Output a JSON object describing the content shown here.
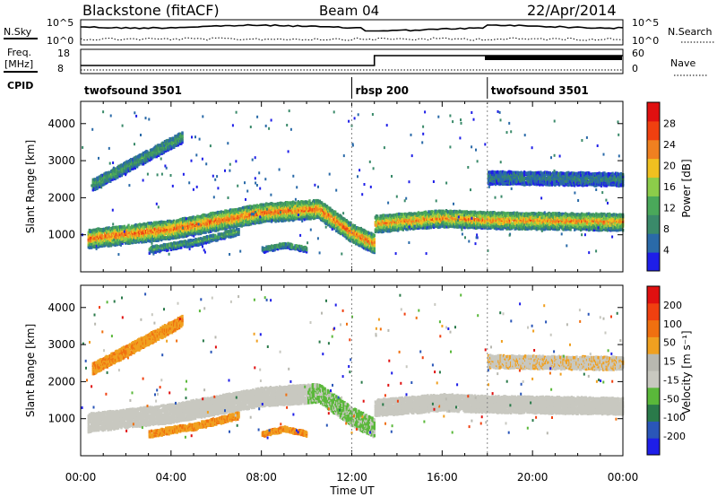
{
  "header": {
    "station": "Blackstone (fitACF)",
    "beam": "Beam 04",
    "date": "22/Apr/2014"
  },
  "noise_panel": {
    "left_label": "N.Sky",
    "right_label": "N.Search",
    "tick_top": "10^5",
    "tick_bottom": "10^0"
  },
  "freq_panel": {
    "left_label_1": "Freq.",
    "left_label_2": "[MHz]",
    "right_label": "Nave",
    "left_ticks": [
      "18",
      "8"
    ],
    "right_ticks": [
      "60",
      "0"
    ],
    "cpid_label": "CPID"
  },
  "cpid_segments": [
    {
      "name": "twofsound 3501",
      "start_hour": 0
    },
    {
      "name": "rbsp 200",
      "start_hour": 12
    },
    {
      "name": "twofsound 3501",
      "start_hour": 18
    }
  ],
  "colors": {
    "power_scale": [
      "#1e1ee8",
      "#2a6aa8",
      "#3a8a6a",
      "#4aa85a",
      "#8ccc4a",
      "#f0c020",
      "#f08020",
      "#f04010",
      "#e01010"
    ],
    "velocity_scale": [
      "#1e1ee8",
      "#2a56b8",
      "#2a7a4a",
      "#5ab83a",
      "#c8c8c0",
      "#b8b8b0",
      "#f0a020",
      "#f07010",
      "#f04010",
      "#e01010"
    ]
  },
  "chart_data": [
    {
      "type": "heatmap",
      "panel": "power",
      "ylabel": "Slant Range [km]",
      "xlabel": "",
      "x_range_hours": [
        0,
        24
      ],
      "ylim": [
        0,
        4600
      ],
      "y_ticks": [
        "1000",
        "2000",
        "3000",
        "4000"
      ],
      "colorbar_label": "Power [dB]",
      "colorbar_ticks": [
        "4",
        "8",
        "12",
        "16",
        "20",
        "24",
        "28"
      ],
      "colorbar_range": [
        0,
        30
      ],
      "bands": [
        {
          "name": "main-echo",
          "from_hour": 0.3,
          "to_hour": 13,
          "range_km": [
            [
              0.3,
              950
            ],
            [
              4,
              1200
            ],
            [
              8,
              1650
            ],
            [
              10.5,
              1750
            ],
            [
              12,
              1100
            ],
            [
              13,
              800
            ]
          ],
          "width_km": 500,
          "level_db": 22
        },
        {
          "name": "upper-streak",
          "from_hour": 0.5,
          "to_hour": 4.5,
          "range_km": [
            [
              0.5,
              2400
            ],
            [
              4.5,
              3700
            ]
          ],
          "width_km": 300,
          "level_db": 10
        },
        {
          "name": "low-arc",
          "from_hour": 3,
          "to_hour": 7,
          "range_km": [
            [
              3,
              650
            ],
            [
              5,
              850
            ],
            [
              7,
              1150
            ]
          ],
          "width_km": 180,
          "level_db": 10
        },
        {
          "name": "low-arc-2",
          "from_hour": 8,
          "to_hour": 10,
          "range_km": [
            [
              8,
              650
            ],
            [
              9,
              780
            ],
            [
              10,
              650
            ]
          ],
          "width_km": 140,
          "level_db": 9
        },
        {
          "name": "evening-band",
          "from_hour": 13,
          "to_hour": 24,
          "range_km": [
            [
              13,
              1350
            ],
            [
              16,
              1500
            ],
            [
              18,
              1450
            ],
            [
              24,
              1400
            ]
          ],
          "width_km": 450,
          "level_db": 20
        },
        {
          "name": "far-band",
          "from_hour": 18,
          "to_hour": 24,
          "range_km": [
            [
              18,
              2600
            ],
            [
              24,
              2550
            ]
          ],
          "width_km": 350,
          "level_db": 6
        }
      ]
    },
    {
      "type": "heatmap",
      "panel": "velocity",
      "ylabel": "Slant Range [km]",
      "xlabel": "Time UT",
      "x_range_hours": [
        0,
        24
      ],
      "x_ticks": [
        "00:00",
        "04:00",
        "08:00",
        "12:00",
        "16:00",
        "20:00",
        "00:00"
      ],
      "ylim": [
        0,
        4600
      ],
      "y_ticks": [
        "1000",
        "2000",
        "3000",
        "4000"
      ],
      "colorbar_label": "Velocity [m s⁻¹]",
      "colorbar_ticks": [
        "200",
        "100",
        "50",
        "15",
        "-15",
        "-50",
        "-100",
        "-200"
      ],
      "colorbar_range": [
        -250,
        250
      ]
    }
  ]
}
